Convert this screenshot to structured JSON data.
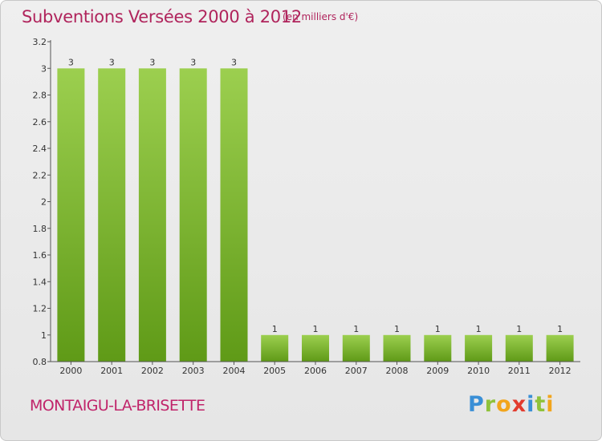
{
  "header": {
    "title": "Subventions Versées 2000 à 2012",
    "unit": "(en milliers d'€)"
  },
  "footer": {
    "commune": "MONTAIGU-LA-BRISETTE",
    "logo_letters": [
      "P",
      "r",
      "o",
      "x",
      "i",
      "t",
      "i"
    ]
  },
  "colors": {
    "title": "#b0245c",
    "bar_top": "#9ccf4f",
    "bar_bottom": "#5f9a17",
    "axis": "#555555"
  },
  "chart_data": {
    "type": "bar",
    "title": "Subventions Versées 2000 à 2012",
    "xlabel": "",
    "ylabel": "",
    "categories": [
      "2000",
      "2001",
      "2002",
      "2003",
      "2004",
      "2005",
      "2006",
      "2007",
      "2008",
      "2009",
      "2010",
      "2011",
      "2012"
    ],
    "values": [
      3,
      3,
      3,
      3,
      3,
      1,
      1,
      1,
      1,
      1,
      1,
      1,
      1
    ],
    "data_labels": [
      "3",
      "3",
      "3",
      "3",
      "3",
      "1",
      "1",
      "1",
      "1",
      "1",
      "1",
      "1",
      "1"
    ],
    "ylim": [
      0.8,
      3.2
    ],
    "yticks": [
      0.8,
      1,
      1.2,
      1.4,
      1.6,
      1.8,
      2,
      2.2,
      2.4,
      2.6,
      2.8,
      3,
      3.2
    ],
    "ytick_labels": [
      "0.8",
      "1",
      "1.2",
      "1.4",
      "1.6",
      "1.8",
      "2",
      "2.2",
      "2.4",
      "2.6",
      "2.8",
      "3",
      "3.2"
    ],
    "grid": false,
    "legend": "none"
  }
}
